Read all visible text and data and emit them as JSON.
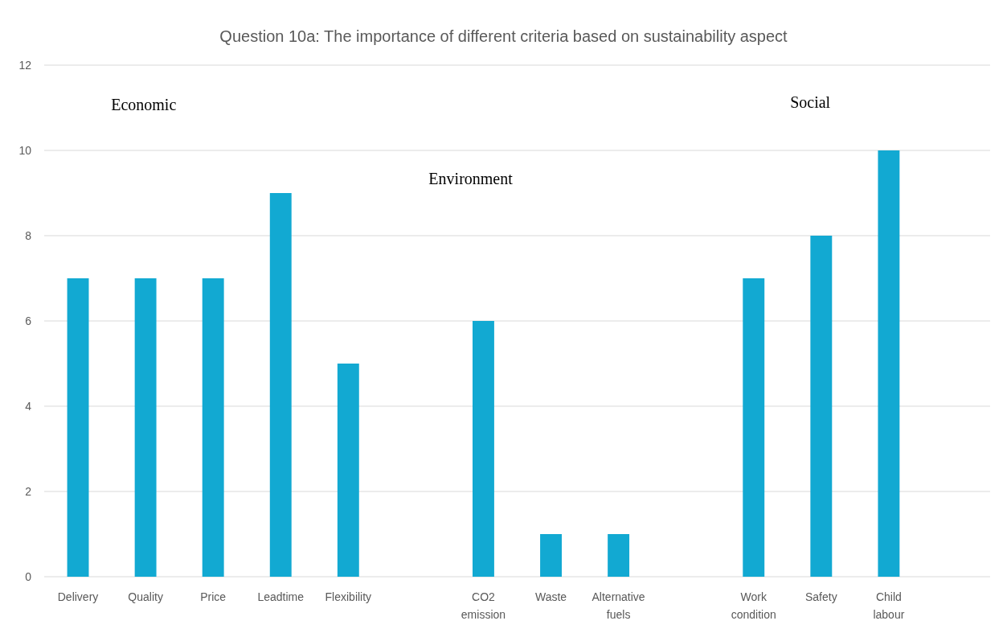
{
  "chart_data": {
    "type": "bar",
    "title": "Question 10a: The importance of different criteria based on sustainability aspect",
    "categories": [
      "Delivery",
      "Quality",
      "Price",
      "Leadtime",
      "Flexibility",
      null,
      "CO2 emission",
      "Waste",
      "Alternative fuels",
      null,
      "Work condition",
      "Safety",
      "Child labour",
      null
    ],
    "values": [
      7,
      7,
      7,
      9,
      5,
      null,
      6,
      1,
      1,
      null,
      7,
      8,
      10,
      null
    ],
    "color": "#12a9d2",
    "ylim": [
      0,
      12
    ],
    "yticks": [
      0,
      2,
      4,
      6,
      8,
      10,
      12
    ],
    "grid": "y",
    "annotations": [
      "Economic",
      "Environment",
      "Social"
    ]
  }
}
